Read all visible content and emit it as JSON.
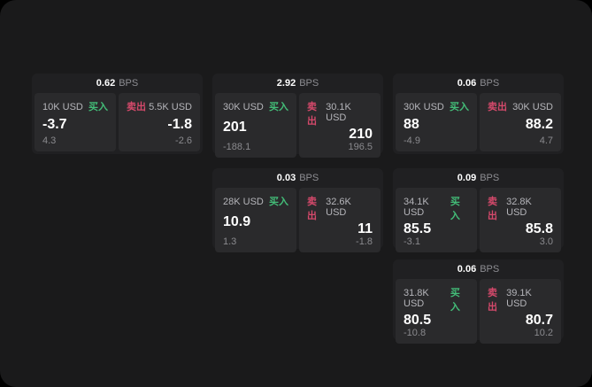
{
  "labels": {
    "bps": "BPS",
    "buy": "买入",
    "sell": "卖出"
  },
  "colors": {
    "buy": "#43bd78",
    "sell": "#d5496b",
    "window_bg": "#1a1a1b",
    "card_bg": "#202022",
    "panel_bg": "#2a2a2c"
  },
  "cards": [
    {
      "bps": "0.62",
      "buy": {
        "amount": "10K USD",
        "value": "-3.7",
        "sub": "4.3"
      },
      "sell": {
        "amount": "5.5K USD",
        "value": "-1.8",
        "sub": "-2.6"
      }
    },
    {
      "bps": "2.92",
      "buy": {
        "amount": "30K USD",
        "value": "201",
        "sub": "-188.1"
      },
      "sell": {
        "amount": "30.1K USD",
        "value": "210",
        "sub": "196.5"
      }
    },
    {
      "bps": "0.06",
      "buy": {
        "amount": "30K USD",
        "value": "88",
        "sub": "-4.9"
      },
      "sell": {
        "amount": "30K USD",
        "value": "88.2",
        "sub": "4.7"
      }
    },
    {
      "bps": "0.03",
      "buy": {
        "amount": "28K USD",
        "value": "10.9",
        "sub": "1.3"
      },
      "sell": {
        "amount": "32.6K USD",
        "value": "11",
        "sub": "-1.8"
      }
    },
    {
      "bps": "0.09",
      "buy": {
        "amount": "34.1K USD",
        "value": "85.5",
        "sub": "-3.1"
      },
      "sell": {
        "amount": "32.8K USD",
        "value": "85.8",
        "sub": "3.0"
      }
    },
    {
      "bps": "0.06",
      "buy": {
        "amount": "31.8K USD",
        "value": "80.5",
        "sub": "-10.8"
      },
      "sell": {
        "amount": "39.1K USD",
        "value": "80.7",
        "sub": "10.2"
      }
    }
  ]
}
